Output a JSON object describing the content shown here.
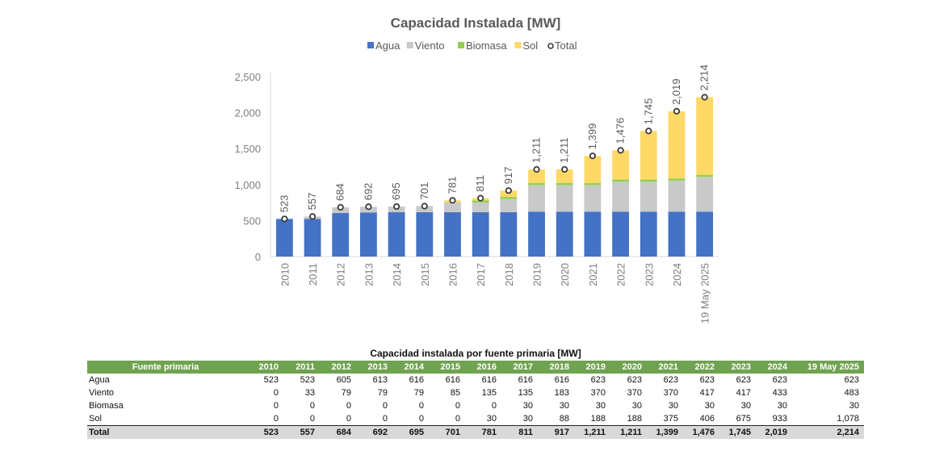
{
  "chart_data": {
    "type": "bar",
    "stacked": true,
    "title": "Capacidad Instalada [MW]",
    "xlabel": "",
    "ylabel": "",
    "ylim": [
      0,
      2500
    ],
    "yticks": [
      0,
      500,
      1000,
      1500,
      2000,
      2500
    ],
    "ytick_labels": [
      "0",
      "500",
      "1,000",
      "1,500",
      "2,000",
      "2,500"
    ],
    "categories": [
      "2010",
      "2011",
      "2012",
      "2013",
      "2014",
      "2015",
      "2016",
      "2017",
      "2018",
      "2019",
      "2020",
      "2021",
      "2022",
      "2023",
      "2024",
      "19 May 2025"
    ],
    "series": [
      {
        "name": "Agua",
        "color": "#4472c4",
        "values": [
          523,
          523,
          605,
          613,
          616,
          616,
          616,
          616,
          616,
          623,
          623,
          623,
          623,
          623,
          623,
          623
        ]
      },
      {
        "name": "Viento",
        "color": "#c9c9c9",
        "values": [
          0,
          33,
          79,
          79,
          79,
          85,
          135,
          135,
          183,
          370,
          370,
          370,
          417,
          417,
          433,
          483
        ]
      },
      {
        "name": "Biomasa",
        "color": "#92d050",
        "values": [
          0,
          0,
          0,
          0,
          0,
          0,
          0,
          30,
          30,
          30,
          30,
          30,
          30,
          30,
          30,
          30
        ]
      },
      {
        "name": "Sol",
        "color": "#ffd966",
        "values": [
          0,
          0,
          0,
          0,
          0,
          0,
          30,
          30,
          88,
          188,
          188,
          375,
          406,
          675,
          933,
          1078
        ]
      }
    ],
    "total": {
      "name": "Total",
      "values": [
        523,
        557,
        684,
        692,
        695,
        701,
        781,
        811,
        917,
        1211,
        1211,
        1399,
        1476,
        1745,
        2019,
        2214
      ]
    },
    "total_labels": [
      "523",
      "557",
      "684",
      "692",
      "695",
      "701",
      "781",
      "811",
      "917",
      "1,211",
      "1,211",
      "1,399",
      "1,476",
      "1,745",
      "2,019",
      "2,214"
    ],
    "legend_position": "top-center"
  },
  "table": {
    "title": "Capacidad instalada por fuente primaria [MW]",
    "header": [
      "Fuente primaria",
      "2010",
      "2011",
      "2012",
      "2013",
      "2014",
      "2015",
      "2016",
      "2017",
      "2018",
      "2019",
      "2020",
      "2021",
      "2022",
      "2023",
      "2024",
      "19 May 2025"
    ],
    "rows": [
      [
        "Agua",
        "523",
        "523",
        "605",
        "613",
        "616",
        "616",
        "616",
        "616",
        "616",
        "623",
        "623",
        "623",
        "623",
        "623",
        "623",
        "623"
      ],
      [
        "Viento",
        "0",
        "33",
        "79",
        "79",
        "79",
        "85",
        "135",
        "135",
        "183",
        "370",
        "370",
        "370",
        "417",
        "417",
        "433",
        "483"
      ],
      [
        "Biomasa",
        "0",
        "0",
        "0",
        "0",
        "0",
        "0",
        "0",
        "30",
        "30",
        "30",
        "30",
        "30",
        "30",
        "30",
        "30",
        "30"
      ],
      [
        "Sol",
        "0",
        "0",
        "0",
        "0",
        "0",
        "0",
        "30",
        "30",
        "88",
        "188",
        "188",
        "375",
        "406",
        "675",
        "933",
        "1,078"
      ]
    ],
    "total_row": [
      "Total",
      "523",
      "557",
      "684",
      "692",
      "695",
      "701",
      "781",
      "811",
      "917",
      "1,211",
      "1,211",
      "1,399",
      "1,476",
      "1,745",
      "2,019",
      "2,214"
    ]
  }
}
